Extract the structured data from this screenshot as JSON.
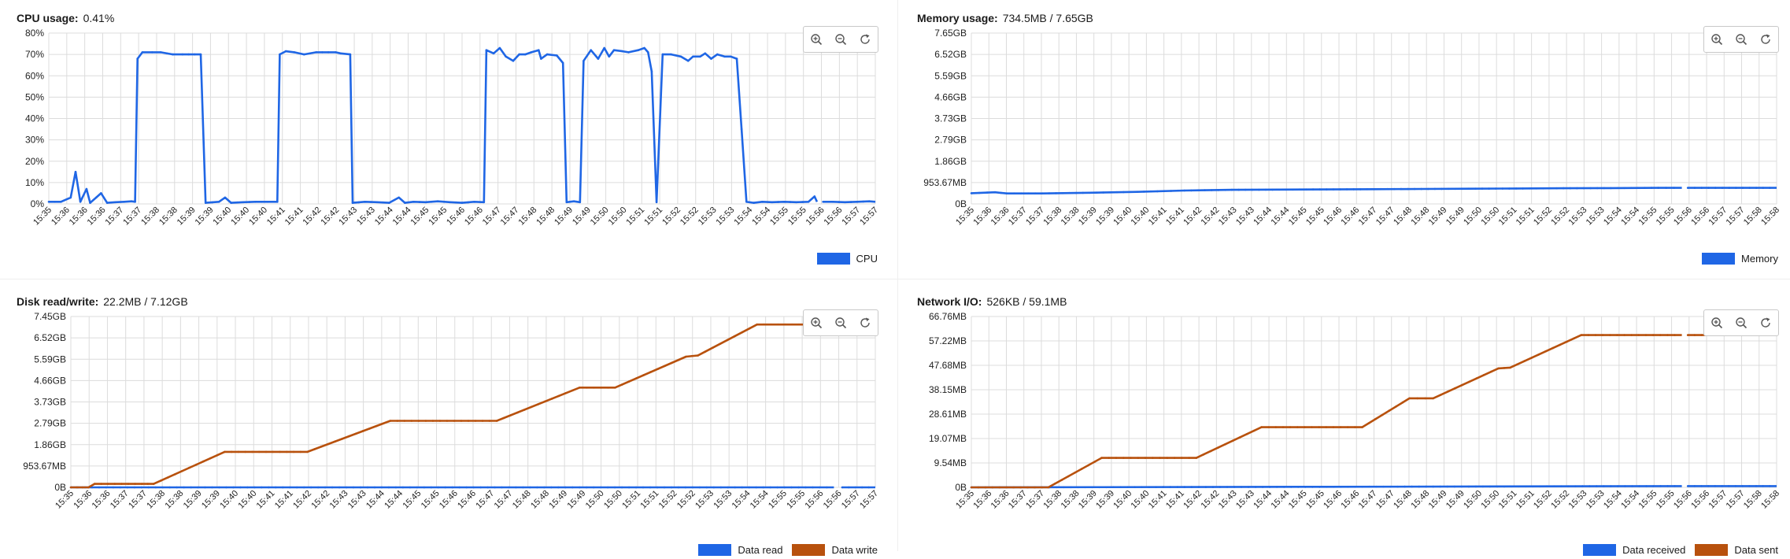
{
  "colors": {
    "cpu": "#1f66e5",
    "write": "#b8510d",
    "grid": "#dcdcdc",
    "axis": "#333333"
  },
  "toolbar_icons": [
    "zoom-in-icon",
    "zoom-out-icon",
    "reset-zoom-icon"
  ],
  "panels": [
    {
      "title": "CPU usage:",
      "value": "0.41%"
    },
    {
      "title": "Memory usage:",
      "value": "734.5MB / 7.65GB"
    },
    {
      "title": "Disk read/write:",
      "value": "22.2MB / 7.12GB"
    },
    {
      "title": "Network I/O:",
      "value": "526KB / 59.1MB"
    }
  ],
  "chart_data": [
    {
      "type": "line",
      "title": "CPU usage:",
      "ylim": [
        0,
        80
      ],
      "y_ticks": [
        "0%",
        "10%",
        "20%",
        "30%",
        "40%",
        "50%",
        "60%",
        "70%",
        "80%"
      ],
      "x_ticks": [
        "15:35",
        "15:36",
        "15:36",
        "15:36",
        "15:37",
        "15:37",
        "15:38",
        "15:38",
        "15:39",
        "15:39",
        "15:40",
        "15:40",
        "15:40",
        "15:41",
        "15:41",
        "15:42",
        "15:42",
        "15:43",
        "15:43",
        "15:44",
        "15:44",
        "15:45",
        "15:45",
        "15:46",
        "15:46",
        "15:47",
        "15:47",
        "15:48",
        "15:48",
        "15:49",
        "15:49",
        "15:50",
        "15:50",
        "15:51",
        "15:51",
        "15:52",
        "15:52",
        "15:53",
        "15:53",
        "15:54",
        "15:54",
        "15:55",
        "15:55",
        "15:56",
        "15:56",
        "15:57",
        "15:57"
      ],
      "grid": true,
      "legend_position": "bottom-right",
      "series": [
        {
          "name": "CPU",
          "color": "#1f66e5",
          "points": [
            [
              0,
              1
            ],
            [
              1,
              1
            ],
            [
              1.8,
              3
            ],
            [
              2.2,
              15
            ],
            [
              2.6,
              1
            ],
            [
              3.1,
              7
            ],
            [
              3.4,
              0.5
            ],
            [
              3.9,
              3
            ],
            [
              4.3,
              5
            ],
            [
              4.8,
              0.5
            ],
            [
              5.5,
              0.8
            ],
            [
              6.2,
              1
            ],
            [
              6.8,
              1.2
            ],
            [
              7.1,
              1
            ],
            [
              7.3,
              68
            ],
            [
              7.7,
              71
            ],
            [
              8.5,
              71
            ],
            [
              9.2,
              71
            ],
            [
              10.2,
              70
            ],
            [
              11,
              70
            ],
            [
              12,
              70
            ],
            [
              12.5,
              70
            ],
            [
              12.9,
              0.5
            ],
            [
              14,
              1
            ],
            [
              14.5,
              3
            ],
            [
              15,
              0.5
            ],
            [
              16,
              0.8
            ],
            [
              17,
              1
            ],
            [
              18,
              1
            ],
            [
              18.8,
              1
            ],
            [
              19,
              70
            ],
            [
              19.5,
              71.5
            ],
            [
              20.2,
              71
            ],
            [
              21,
              70
            ],
            [
              22,
              71
            ],
            [
              23,
              71
            ],
            [
              23.6,
              71
            ],
            [
              24,
              70.5
            ],
            [
              24.8,
              70
            ],
            [
              25,
              0.5
            ],
            [
              26,
              1
            ],
            [
              27,
              0.8
            ],
            [
              28,
              0.5
            ],
            [
              28.8,
              3
            ],
            [
              29.3,
              0.5
            ],
            [
              30,
              1
            ],
            [
              31,
              0.8
            ],
            [
              32,
              1.2
            ],
            [
              33,
              0.8
            ],
            [
              34,
              0.5
            ],
            [
              35,
              1
            ],
            [
              35.8,
              0.8
            ],
            [
              36,
              72
            ],
            [
              36.6,
              70.5
            ],
            [
              37.1,
              73
            ],
            [
              37.6,
              69
            ],
            [
              38.2,
              67
            ],
            [
              38.7,
              70
            ],
            [
              39.2,
              70
            ],
            [
              39.7,
              71
            ],
            [
              40.3,
              72
            ],
            [
              40.5,
              68
            ],
            [
              41,
              70
            ],
            [
              41.8,
              69.5
            ],
            [
              42.3,
              66
            ],
            [
              42.6,
              0.8
            ],
            [
              43.2,
              1.2
            ],
            [
              43.7,
              0.8
            ],
            [
              44,
              67
            ],
            [
              44.6,
              72
            ],
            [
              45.2,
              68
            ],
            [
              45.7,
              73
            ],
            [
              46.1,
              69
            ],
            [
              46.5,
              72
            ],
            [
              47.2,
              71.5
            ],
            [
              47.7,
              71
            ],
            [
              48.5,
              72
            ],
            [
              49,
              73
            ],
            [
              49.3,
              71
            ],
            [
              49.6,
              62
            ],
            [
              50,
              0.8
            ],
            [
              50.5,
              70
            ],
            [
              51.2,
              70
            ],
            [
              52,
              69
            ],
            [
              52.6,
              67
            ],
            [
              53,
              69
            ],
            [
              53.6,
              69
            ],
            [
              54,
              70.5
            ],
            [
              54.5,
              68
            ],
            [
              55,
              70
            ],
            [
              55.6,
              69
            ],
            [
              56.1,
              69
            ],
            [
              56.6,
              68
            ],
            [
              57,
              35
            ],
            [
              57.4,
              1
            ],
            [
              58,
              0.5
            ],
            [
              58.7,
              1
            ],
            [
              59.5,
              0.8
            ],
            [
              60.5,
              1
            ],
            [
              61.5,
              0.8
            ],
            [
              62.5,
              1
            ],
            [
              63,
              3.5
            ],
            [
              63.2,
              1
            ]
          ],
          "points_b": [
            [
              63.7,
              1
            ],
            [
              64.5,
              1
            ],
            [
              65.5,
              0.8
            ],
            [
              66.5,
              1
            ],
            [
              67.5,
              1.2
            ],
            [
              68,
              1
            ]
          ]
        }
      ]
    },
    {
      "type": "line",
      "title": "Memory usage:",
      "ylim": [
        0,
        7.65
      ],
      "y_ticks": [
        "0B",
        "953.67MB",
        "1.86GB",
        "2.79GB",
        "3.73GB",
        "4.66GB",
        "5.59GB",
        "6.52GB",
        "7.65GB"
      ],
      "x_ticks": [
        "15:35",
        "15:36",
        "15:36",
        "15:37",
        "15:37",
        "15:38",
        "15:38",
        "15:39",
        "15:39",
        "15:40",
        "15:40",
        "15:41",
        "15:41",
        "15:42",
        "15:42",
        "15:43",
        "15:43",
        "15:44",
        "15:44",
        "15:45",
        "15:45",
        "15:46",
        "15:46",
        "15:47",
        "15:47",
        "15:48",
        "15:48",
        "15:49",
        "15:49",
        "15:50",
        "15:50",
        "15:51",
        "15:51",
        "15:52",
        "15:52",
        "15:53",
        "15:53",
        "15:54",
        "15:54",
        "15:55",
        "15:55",
        "15:56",
        "15:56",
        "15:57",
        "15:57",
        "15:58",
        "15:58"
      ],
      "grid": true,
      "legend_position": "bottom-right",
      "series": [
        {
          "name": "Memory",
          "color": "#1f66e5",
          "points": [
            [
              0,
              0.48
            ],
            [
              2,
              0.52
            ],
            [
              3,
              0.47
            ],
            [
              6,
              0.47
            ],
            [
              10,
              0.5
            ],
            [
              14,
              0.54
            ],
            [
              18,
              0.6
            ],
            [
              22,
              0.63
            ],
            [
              26,
              0.64
            ],
            [
              30,
              0.65
            ],
            [
              34,
              0.66
            ],
            [
              38,
              0.67
            ],
            [
              42,
              0.68
            ],
            [
              46,
              0.69
            ],
            [
              50,
              0.7
            ],
            [
              54,
              0.71
            ],
            [
              58,
              0.72
            ],
            [
              60,
              0.72
            ]
          ],
          "points_b": [
            [
              60.5,
              0.72
            ],
            [
              64,
              0.72
            ],
            [
              68,
              0.72
            ]
          ]
        }
      ]
    },
    {
      "type": "line",
      "title": "Disk read/write:",
      "ylim": [
        0,
        7.45
      ],
      "y_ticks": [
        "0B",
        "953.67MB",
        "1.86GB",
        "2.79GB",
        "3.73GB",
        "4.66GB",
        "5.59GB",
        "6.52GB",
        "7.45GB"
      ],
      "x_ticks": [
        "15:35",
        "15:36",
        "15:36",
        "15:37",
        "15:37",
        "15:38",
        "15:38",
        "15:39",
        "15:39",
        "15:40",
        "15:40",
        "15:41",
        "15:41",
        "15:42",
        "15:42",
        "15:43",
        "15:43",
        "15:44",
        "15:44",
        "15:45",
        "15:45",
        "15:46",
        "15:46",
        "15:47",
        "15:47",
        "15:48",
        "15:48",
        "15:49",
        "15:49",
        "15:50",
        "15:50",
        "15:51",
        "15:51",
        "15:52",
        "15:52",
        "15:53",
        "15:53",
        "15:54",
        "15:54",
        "15:55",
        "15:55",
        "15:56",
        "15:56",
        "15:57",
        "15:57"
      ],
      "grid": true,
      "legend_position": "bottom-right",
      "series": [
        {
          "name": "Data read",
          "color": "#1f66e5",
          "points": [
            [
              0,
              0
            ],
            [
              64.5,
              0
            ]
          ],
          "points_b": [
            [
              65.2,
              0
            ],
            [
              68,
              0
            ]
          ]
        },
        {
          "name": "Data write",
          "color": "#b8510d",
          "points": [
            [
              0,
              0
            ],
            [
              1.5,
              0
            ],
            [
              2,
              0.15
            ],
            [
              6,
              0.15
            ],
            [
              7,
              0.15
            ],
            [
              13,
              1.55
            ],
            [
              20,
              1.55
            ],
            [
              27,
              2.9
            ],
            [
              36,
              2.9
            ],
            [
              43,
              4.35
            ],
            [
              46,
              4.35
            ],
            [
              52,
              5.7
            ],
            [
              53,
              5.75
            ],
            [
              58,
              7.1
            ],
            [
              64.5,
              7.1
            ]
          ],
          "points_b": []
        }
      ]
    },
    {
      "type": "line",
      "title": "Network I/O:",
      "ylim": [
        0,
        66.76
      ],
      "y_ticks": [
        "0B",
        "9.54MB",
        "19.07MB",
        "28.61MB",
        "38.15MB",
        "47.68MB",
        "57.22MB",
        "66.76MB"
      ],
      "x_ticks": [
        "15:35",
        "15:36",
        "15:36",
        "15:37",
        "15:37",
        "15:38",
        "15:38",
        "15:39",
        "15:39",
        "15:40",
        "15:40",
        "15:41",
        "15:41",
        "15:42",
        "15:42",
        "15:43",
        "15:43",
        "15:44",
        "15:44",
        "15:45",
        "15:45",
        "15:46",
        "15:46",
        "15:47",
        "15:47",
        "15:48",
        "15:48",
        "15:49",
        "15:49",
        "15:50",
        "15:50",
        "15:51",
        "15:51",
        "15:52",
        "15:52",
        "15:53",
        "15:53",
        "15:54",
        "15:54",
        "15:55",
        "15:55",
        "15:56",
        "15:56",
        "15:57",
        "15:57",
        "15:58",
        "15:58"
      ],
      "grid": true,
      "legend_position": "bottom-right",
      "series": [
        {
          "name": "Data received",
          "color": "#1f66e5",
          "points": [
            [
              0,
              0
            ],
            [
              30,
              0.2
            ],
            [
              60,
              0.5
            ]
          ],
          "points_b": [
            [
              60.5,
              0.5
            ],
            [
              68,
              0.5
            ]
          ]
        },
        {
          "name": "Data sent",
          "color": "#b8510d",
          "points": [
            [
              0,
              0
            ],
            [
              6.5,
              0
            ],
            [
              11,
              11.5
            ],
            [
              19,
              11.5
            ],
            [
              24.5,
              23.5
            ],
            [
              33,
              23.5
            ],
            [
              37,
              34.8
            ],
            [
              39,
              34.8
            ],
            [
              44.5,
              46.5
            ],
            [
              45.5,
              46.8
            ],
            [
              51.5,
              59.5
            ],
            [
              60,
              59.5
            ]
          ],
          "points_b": [
            [
              60.5,
              59.5
            ],
            [
              68,
              59.5
            ]
          ]
        }
      ]
    }
  ]
}
